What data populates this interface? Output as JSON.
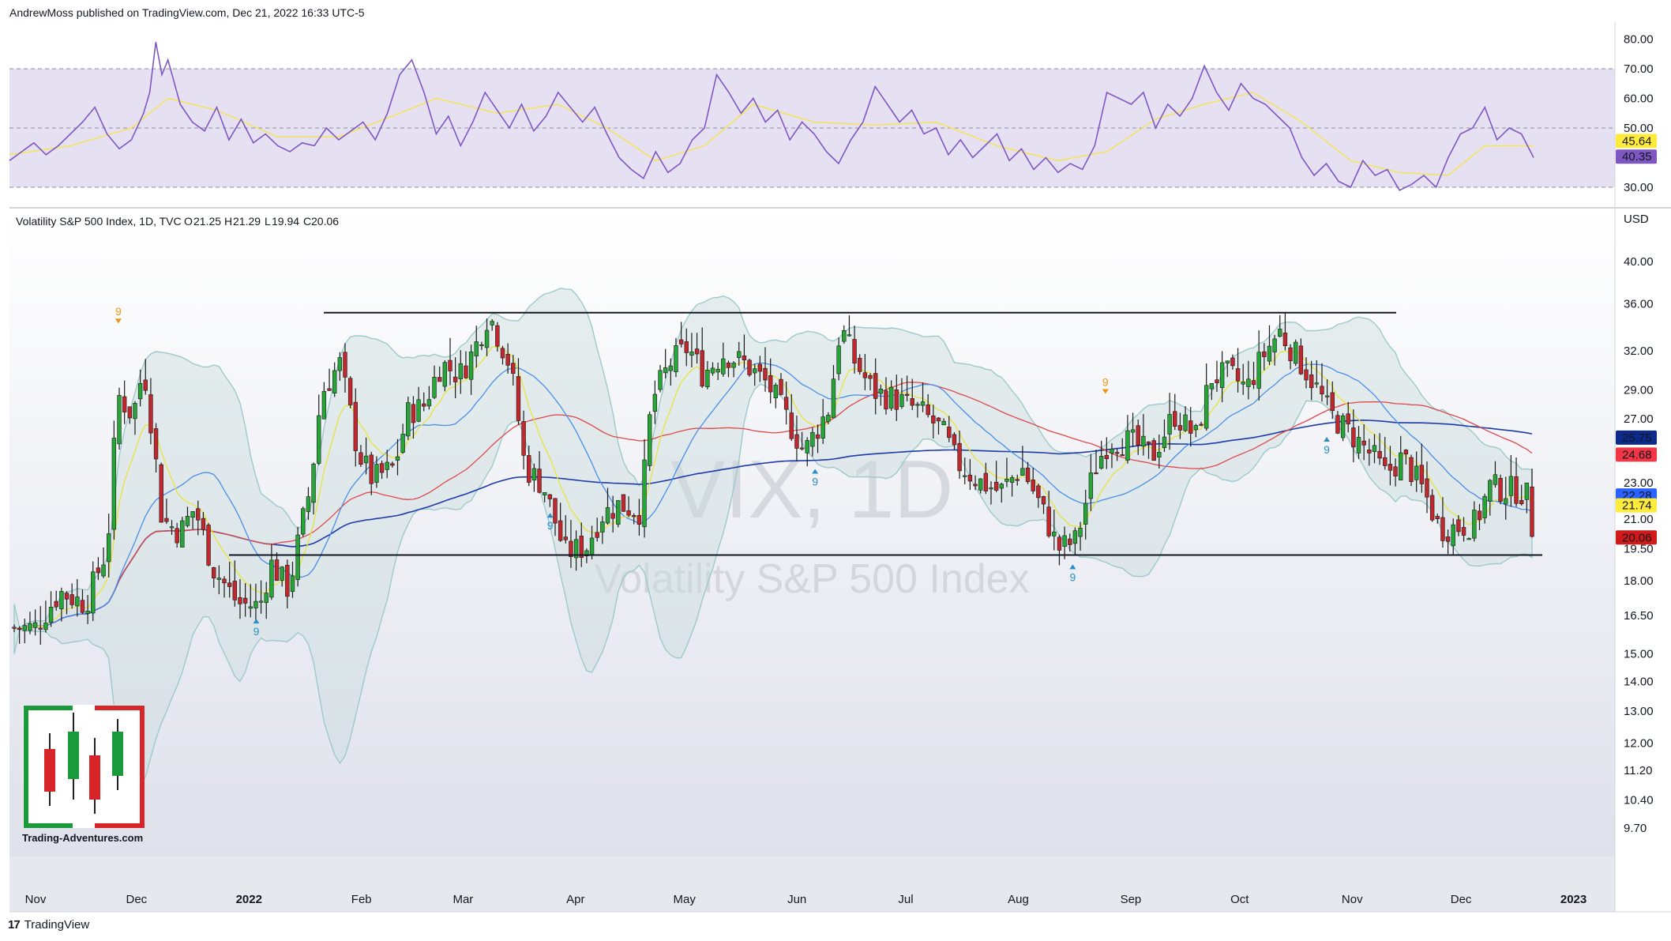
{
  "header": {
    "published": "AndrewMoss published on TradingView.com, Dec 21, 2022 16:33 UTC-5"
  },
  "footer": {
    "brand": "TradingView"
  },
  "logo": {
    "site": "Trading-Adventures.com"
  },
  "chart_data": {
    "type": "candlestick",
    "legend": {
      "name": "Volatility S&P 500 Index, 1D, TVC",
      "open_label": "O",
      "open": "21.25",
      "high_label": "H",
      "high": "21.29",
      "low_label": "L",
      "low": "19.94",
      "close_label": "C",
      "close": "20.06"
    },
    "watermark": {
      "symbol": "VIX, 1D",
      "name": "Volatility S&P 500 Index"
    },
    "currency": "USD",
    "y_ticks": [
      "40.00",
      "36.00",
      "32.00",
      "29.00",
      "27.00",
      "23.00",
      "21.00",
      "19.50",
      "18.00",
      "16.50",
      "15.00",
      "14.00",
      "13.00",
      "12.00",
      "11.20",
      "10.40",
      "9.70"
    ],
    "y_tick_values": [
      40,
      36,
      32,
      29,
      27,
      23,
      21,
      19.5,
      18,
      16.5,
      15,
      14,
      13,
      12,
      11.2,
      10.4,
      9.7
    ],
    "x_ticks": [
      "Nov",
      "Dec",
      "2022",
      "Feb",
      "Mar",
      "Apr",
      "May",
      "Jun",
      "Jul",
      "Aug",
      "Sep",
      "Oct",
      "Nov",
      "Dec",
      "2023"
    ],
    "y_scale": "log",
    "price_labels": [
      {
        "value": "25.75",
        "color": "#0d2a8a",
        "text_color": "#ffffff"
      },
      {
        "value": "24.68",
        "color": "#f23645",
        "text_color": "#ffffff"
      },
      {
        "value": "22.28",
        "color": "#2962ff",
        "text_color": "#ffffff"
      },
      {
        "value": "21.74",
        "color": "#ffeb3b",
        "text_color": "#131722"
      },
      {
        "value": "20.06",
        "color": "#d01a1a",
        "text_color": "#ffffff"
      }
    ],
    "horizontal_levels": [
      35.2,
      19.2
    ],
    "td_marks": [
      {
        "label": "9",
        "dir": "down",
        "date": "2021-11-26",
        "value": 34.0
      },
      {
        "label": "9",
        "dir": "up",
        "date": "2022-01-03",
        "value": 16.5
      },
      {
        "label": "9",
        "dir": "up",
        "date": "2022-03-25",
        "value": 21.5
      },
      {
        "label": "9",
        "dir": "up",
        "date": "2022-06-06",
        "value": 24.0
      },
      {
        "label": "9",
        "dir": "up",
        "date": "2022-08-16",
        "value": 18.9
      },
      {
        "label": "9",
        "dir": "down",
        "date": "2022-08-25",
        "value": 28.5
      },
      {
        "label": "9",
        "dir": "up",
        "date": "2022-10-25",
        "value": 26.0
      }
    ],
    "close_path": [
      [
        "2021-10-27",
        16.0
      ],
      [
        "2021-11-03",
        16.0
      ],
      [
        "2021-11-10",
        17.5
      ],
      [
        "2021-11-17",
        17.0
      ],
      [
        "2021-11-23",
        19.5
      ],
      [
        "2021-11-26",
        28.6
      ],
      [
        "2021-11-30",
        27.2
      ],
      [
        "2021-12-03",
        30.7
      ],
      [
        "2021-12-08",
        21.0
      ],
      [
        "2021-12-13",
        20.3
      ],
      [
        "2021-12-17",
        21.6
      ],
      [
        "2021-12-22",
        18.6
      ],
      [
        "2021-12-29",
        17.0
      ],
      [
        "2022-01-04",
        16.9
      ],
      [
        "2022-01-07",
        18.8
      ],
      [
        "2022-01-12",
        17.6
      ],
      [
        "2022-01-18",
        22.8
      ],
      [
        "2022-01-21",
        28.8
      ],
      [
        "2022-01-26",
        31.0
      ],
      [
        "2022-01-31",
        24.8
      ],
      [
        "2022-02-04",
        23.2
      ],
      [
        "2022-02-10",
        23.9
      ],
      [
        "2022-02-14",
        27.5
      ],
      [
        "2022-02-18",
        27.8
      ],
      [
        "2022-02-23",
        31.0
      ],
      [
        "2022-02-28",
        30.1
      ],
      [
        "2022-03-04",
        32.0
      ],
      [
        "2022-03-08",
        35.1
      ],
      [
        "2022-03-14",
        30.8
      ],
      [
        "2022-03-18",
        23.9
      ],
      [
        "2022-03-23",
        22.9
      ],
      [
        "2022-03-29",
        19.3
      ],
      [
        "2022-04-04",
        19.6
      ],
      [
        "2022-04-08",
        21.2
      ],
      [
        "2022-04-13",
        21.8
      ],
      [
        "2022-04-19",
        21.4
      ],
      [
        "2022-04-22",
        28.2
      ],
      [
        "2022-04-27",
        31.0
      ],
      [
        "2022-05-02",
        32.3
      ],
      [
        "2022-05-06",
        30.2
      ],
      [
        "2022-05-12",
        31.8
      ],
      [
        "2022-05-18",
        30.9
      ],
      [
        "2022-05-24",
        29.4
      ],
      [
        "2022-05-31",
        26.2
      ],
      [
        "2022-06-03",
        24.8
      ],
      [
        "2022-06-10",
        27.8
      ],
      [
        "2022-06-13",
        34.0
      ],
      [
        "2022-06-17",
        31.1
      ],
      [
        "2022-06-22",
        28.9
      ],
      [
        "2022-06-28",
        28.4
      ],
      [
        "2022-07-05",
        27.5
      ],
      [
        "2022-07-11",
        26.2
      ],
      [
        "2022-07-15",
        24.2
      ],
      [
        "2022-07-21",
        23.1
      ],
      [
        "2022-07-27",
        22.5
      ],
      [
        "2022-08-02",
        23.9
      ],
      [
        "2022-08-08",
        21.3
      ],
      [
        "2022-08-12",
        19.5
      ],
      [
        "2022-08-17",
        19.9
      ],
      [
        "2022-08-22",
        23.8
      ],
      [
        "2022-08-26",
        25.6
      ],
      [
        "2022-09-01",
        25.5
      ],
      [
        "2022-09-07",
        24.6
      ],
      [
        "2022-09-13",
        27.3
      ],
      [
        "2022-09-19",
        25.8
      ],
      [
        "2022-09-23",
        29.9
      ],
      [
        "2022-09-28",
        30.2
      ],
      [
        "2022-10-03",
        29.1
      ],
      [
        "2022-10-07",
        31.4
      ],
      [
        "2022-10-12",
        33.6
      ],
      [
        "2022-10-17",
        31.4
      ],
      [
        "2022-10-21",
        29.7
      ],
      [
        "2022-10-26",
        27.3
      ],
      [
        "2022-11-01",
        25.9
      ],
      [
        "2022-11-07",
        24.5
      ],
      [
        "2022-11-10",
        23.5
      ],
      [
        "2022-11-15",
        24.5
      ],
      [
        "2022-11-21",
        22.4
      ],
      [
        "2022-11-25",
        20.5
      ],
      [
        "2022-11-30",
        20.6
      ],
      [
        "2022-12-05",
        20.8
      ],
      [
        "2022-12-09",
        22.8
      ],
      [
        "2022-12-13",
        22.6
      ],
      [
        "2022-12-16",
        22.6
      ],
      [
        "2022-12-19",
        22.4
      ],
      [
        "2022-12-21",
        20.06
      ]
    ],
    "rsi": {
      "y_ticks": [
        "80.00",
        "70.00",
        "60.00",
        "50.00",
        "30.00"
      ],
      "y_tick_values": [
        80,
        70,
        60,
        50,
        30
      ],
      "levels": [
        70,
        50,
        30
      ],
      "value": "40.35",
      "ma_value": "45.64",
      "rsi_color": "#7e57c2",
      "ma_color": "#ffeb3b",
      "path": [
        [
          0,
          39
        ],
        [
          2,
          42
        ],
        [
          4,
          45
        ],
        [
          6,
          41
        ],
        [
          8,
          44
        ],
        [
          10,
          48
        ],
        [
          12,
          52
        ],
        [
          14,
          57
        ],
        [
          16,
          48
        ],
        [
          18,
          43
        ],
        [
          20,
          46
        ],
        [
          22,
          55
        ],
        [
          23,
          62
        ],
        [
          24,
          79
        ],
        [
          25,
          68
        ],
        [
          26,
          73
        ],
        [
          28,
          58
        ],
        [
          30,
          52
        ],
        [
          32,
          49
        ],
        [
          34,
          57
        ],
        [
          36,
          46
        ],
        [
          38,
          53
        ],
        [
          40,
          45
        ],
        [
          42,
          48
        ],
        [
          44,
          44
        ],
        [
          46,
          42
        ],
        [
          48,
          45
        ],
        [
          50,
          44
        ],
        [
          52,
          50
        ],
        [
          54,
          46
        ],
        [
          56,
          49
        ],
        [
          58,
          52
        ],
        [
          60,
          46
        ],
        [
          62,
          55
        ],
        [
          64,
          68
        ],
        [
          66,
          73
        ],
        [
          68,
          62
        ],
        [
          70,
          48
        ],
        [
          72,
          54
        ],
        [
          74,
          44
        ],
        [
          76,
          52
        ],
        [
          78,
          62
        ],
        [
          80,
          56
        ],
        [
          82,
          50
        ],
        [
          84,
          58
        ],
        [
          86,
          49
        ],
        [
          88,
          54
        ],
        [
          90,
          62
        ],
        [
          92,
          57
        ],
        [
          94,
          52
        ],
        [
          96,
          57
        ],
        [
          98,
          48
        ],
        [
          100,
          40
        ],
        [
          102,
          36
        ],
        [
          104,
          33
        ],
        [
          106,
          42
        ],
        [
          108,
          35
        ],
        [
          110,
          38
        ],
        [
          112,
          46
        ],
        [
          114,
          50
        ],
        [
          116,
          68
        ],
        [
          118,
          62
        ],
        [
          120,
          55
        ],
        [
          122,
          60
        ],
        [
          124,
          52
        ],
        [
          126,
          56
        ],
        [
          128,
          46
        ],
        [
          130,
          52
        ],
        [
          132,
          48
        ],
        [
          134,
          42
        ],
        [
          136,
          38
        ],
        [
          138,
          46
        ],
        [
          140,
          52
        ],
        [
          142,
          64
        ],
        [
          144,
          58
        ],
        [
          146,
          52
        ],
        [
          148,
          56
        ],
        [
          150,
          48
        ],
        [
          152,
          50
        ],
        [
          154,
          41
        ],
        [
          156,
          46
        ],
        [
          158,
          40
        ],
        [
          160,
          44
        ],
        [
          162,
          48
        ],
        [
          164,
          39
        ],
        [
          166,
          43
        ],
        [
          168,
          36
        ],
        [
          170,
          40
        ],
        [
          172,
          35
        ],
        [
          174,
          38
        ],
        [
          176,
          36
        ],
        [
          178,
          44
        ],
        [
          180,
          62
        ],
        [
          182,
          60
        ],
        [
          184,
          58
        ],
        [
          186,
          62
        ],
        [
          188,
          50
        ],
        [
          190,
          58
        ],
        [
          192,
          54
        ],
        [
          194,
          60
        ],
        [
          196,
          71
        ],
        [
          198,
          62
        ],
        [
          200,
          56
        ],
        [
          202,
          65
        ],
        [
          204,
          60
        ],
        [
          206,
          58
        ],
        [
          208,
          54
        ],
        [
          210,
          50
        ],
        [
          212,
          40
        ],
        [
          214,
          34
        ],
        [
          216,
          38
        ],
        [
          218,
          32
        ],
        [
          220,
          30
        ],
        [
          222,
          39
        ],
        [
          224,
          34
        ],
        [
          226,
          36
        ],
        [
          228,
          29
        ],
        [
          230,
          31
        ],
        [
          232,
          34
        ],
        [
          234,
          30
        ],
        [
          236,
          40
        ],
        [
          238,
          48
        ],
        [
          240,
          50
        ],
        [
          242,
          57
        ],
        [
          244,
          46
        ],
        [
          246,
          50
        ],
        [
          248,
          48
        ],
        [
          250,
          40
        ]
      ],
      "ma_path": [
        [
          0,
          41
        ],
        [
          10,
          44
        ],
        [
          20,
          50
        ],
        [
          26,
          60
        ],
        [
          34,
          56
        ],
        [
          44,
          47
        ],
        [
          54,
          47
        ],
        [
          64,
          55
        ],
        [
          70,
          60
        ],
        [
          80,
          55
        ],
        [
          90,
          58
        ],
        [
          98,
          50
        ],
        [
          106,
          39
        ],
        [
          114,
          44
        ],
        [
          122,
          58
        ],
        [
          132,
          52
        ],
        [
          142,
          51
        ],
        [
          152,
          52
        ],
        [
          162,
          44
        ],
        [
          172,
          39
        ],
        [
          180,
          42
        ],
        [
          188,
          53
        ],
        [
          196,
          58
        ],
        [
          204,
          62
        ],
        [
          212,
          52
        ],
        [
          220,
          39
        ],
        [
          228,
          35
        ],
        [
          236,
          34
        ],
        [
          242,
          44
        ],
        [
          250,
          44
        ]
      ]
    }
  }
}
